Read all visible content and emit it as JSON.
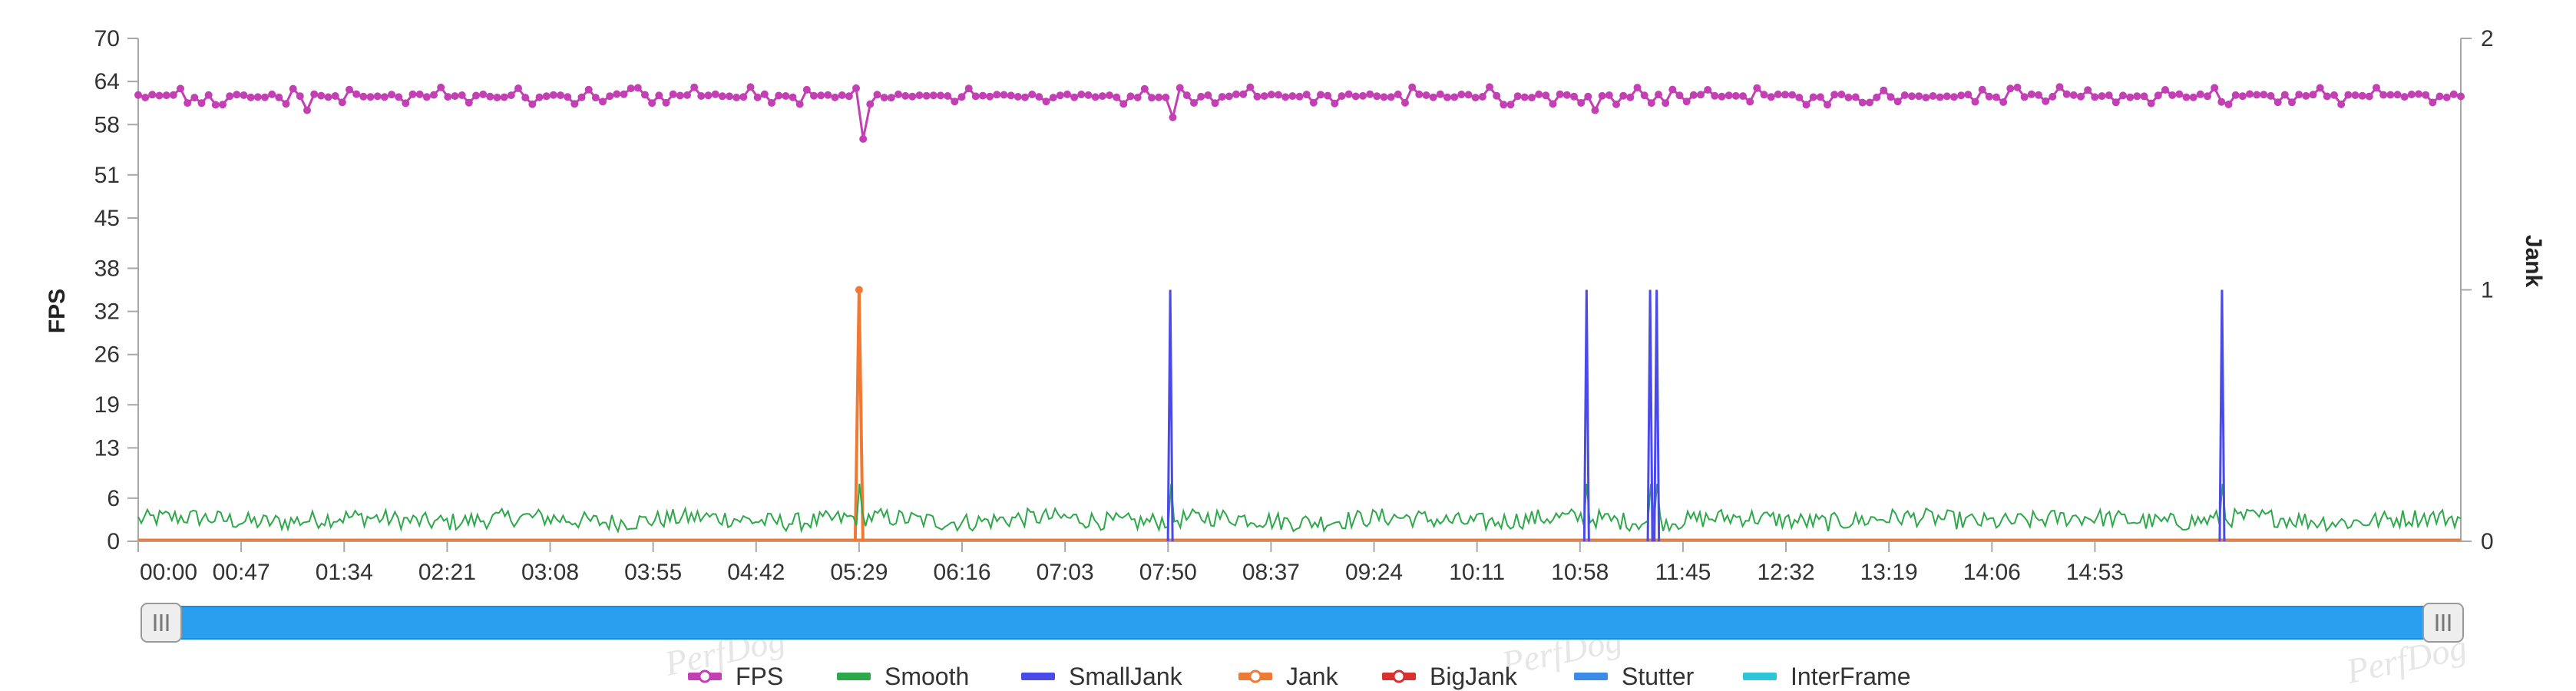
{
  "chart_data": {
    "type": "line",
    "xlabel": "",
    "y_left_label": "FPS",
    "y_right_label": "Jank",
    "y_left_ticks": [
      0,
      6,
      13,
      19,
      26,
      32,
      38,
      45,
      51,
      58,
      64,
      70
    ],
    "y_left_range": [
      0,
      70
    ],
    "y_right_ticks": [
      0,
      1,
      2
    ],
    "y_right_range": [
      0,
      2
    ],
    "x_range_seconds": [
      0,
      1060
    ],
    "x_ticks": [
      "00:00",
      "00:47",
      "01:34",
      "02:21",
      "03:08",
      "03:55",
      "04:42",
      "05:29",
      "06:16",
      "07:03",
      "07:50",
      "08:37",
      "09:24",
      "10:11",
      "10:58",
      "11:45",
      "12:32",
      "13:19",
      "14:06",
      "14:53"
    ],
    "grid": false,
    "legend_position": "bottom",
    "series": [
      {
        "name": "FPS",
        "color": "#c23fb4",
        "axis": "left",
        "baseline": 62,
        "dips": [
          {
            "x": "01:18",
            "y": 60
          },
          {
            "x": "05:30",
            "y": 56
          },
          {
            "x": "07:51",
            "y": 59
          },
          {
            "x": "11:05",
            "y": 60
          },
          {
            "x": "11:37",
            "y": 61
          }
        ]
      },
      {
        "name": "Smooth",
        "color": "#2da84a",
        "axis": "left",
        "baseline": 3
      },
      {
        "name": "SmallJank",
        "color": "#4a4ae8",
        "axis": "right",
        "spikes": [
          {
            "x": "07:51",
            "y": 1
          },
          {
            "x": "11:01",
            "y": 1
          },
          {
            "x": "11:30",
            "y": 1
          },
          {
            "x": "11:33",
            "y": 1
          },
          {
            "x": "15:51",
            "y": 1
          }
        ]
      },
      {
        "name": "Jank",
        "color": "#f07a34",
        "axis": "right",
        "spikes": [
          {
            "x": "05:29",
            "y": 1
          }
        ]
      },
      {
        "name": "BigJank",
        "color": "#d93030",
        "axis": "right",
        "spikes": []
      },
      {
        "name": "Stutter",
        "color": "#3d8be8",
        "axis": "right",
        "spikes": []
      },
      {
        "name": "InterFrame",
        "color": "#2cc6d8",
        "axis": "right",
        "spikes": []
      }
    ]
  },
  "slider": {
    "start": 0,
    "end": 1
  }
}
